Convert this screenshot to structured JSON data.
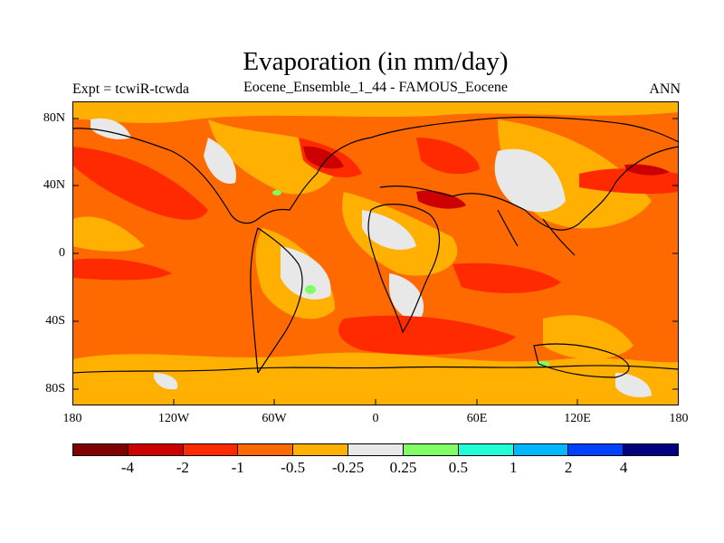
{
  "title": "Evaporation (in mm/day)",
  "left_label": "Expt = tcwiR-tcwda",
  "center_label": "Eocene_Ensemble_1_44 - FAMOUS_Eocene",
  "right_label": "ANN",
  "lat_ticks": [
    "80N",
    "40N",
    "0",
    "40S",
    "80S"
  ],
  "lon_ticks": [
    "180",
    "120W",
    "60W",
    "0",
    "60E",
    "120E",
    "180"
  ],
  "colorbar": {
    "colors": [
      "#800000",
      "#cc0000",
      "#ff2a00",
      "#ff6a00",
      "#ffb000",
      "#e8e8e8",
      "#80ff66",
      "#22ffd6",
      "#00b8ff",
      "#0040ff",
      "#000080"
    ],
    "labels": [
      "-4",
      "-2",
      "-1",
      "-0.5",
      "-0.25",
      "0.25",
      "0.5",
      "1",
      "2",
      "4"
    ]
  }
}
